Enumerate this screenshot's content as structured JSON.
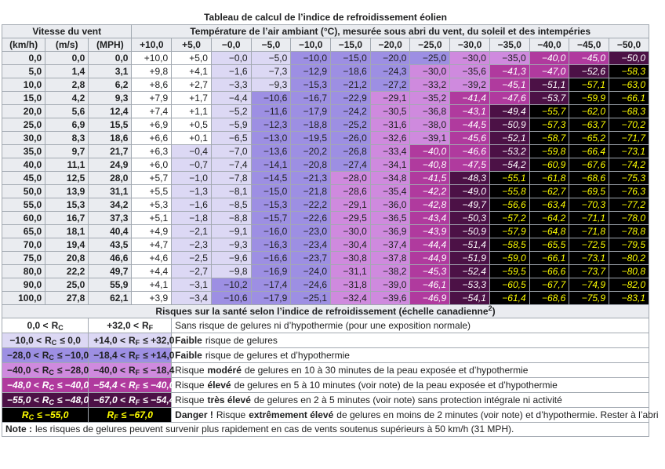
{
  "title": "Tableau de calcul de l’indice de refroidissement éolien",
  "header": {
    "wind": "Vitesse du vent",
    "temperature": "Température de l’air ambiant (°C), mesurée sous abri du vent, du soleil et des intempéries",
    "columns": [
      "(km/h)",
      "(m/s)",
      "(MPH)",
      "+10,0",
      "+5,0",
      "−0,0",
      "−5,0",
      "−10,0",
      "−15,0",
      "−20,0",
      "−25,0",
      "−30,0",
      "−35,0",
      "−40,0",
      "−45,0",
      "−50,0"
    ]
  },
  "rows": [
    [
      "0,0",
      "0,0",
      "0,0",
      "+10,0",
      "+5,0",
      "−0,0",
      "−5,0",
      "−10,0",
      "−15,0",
      "−20,0",
      "−25,0",
      "−30,0",
      "−35,0",
      "−40,0",
      "−45,0",
      "−50,0"
    ],
    [
      "5,0",
      "1,4",
      "3,1",
      "+9,8",
      "+4,1",
      "−1,6",
      "−7,3",
      "−12,9",
      "−18,6",
      "−24,3",
      "−30,0",
      "−35,6",
      "−41,3",
      "−47,0",
      "−52,6",
      "−58,3"
    ],
    [
      "10,0",
      "2,8",
      "6,2",
      "+8,6",
      "+2,7",
      "−3,3",
      "−9,3",
      "−15,3",
      "−21,2",
      "−27,2",
      "−33,2",
      "−39,2",
      "−45,1",
      "−51,1",
      "−57,1",
      "−63,0"
    ],
    [
      "15,0",
      "4,2",
      "9,3",
      "+7,9",
      "+1,7",
      "−4,4",
      "−10,6",
      "−16,7",
      "−22,9",
      "−29,1",
      "−35,2",
      "−41,4",
      "−47,6",
      "−53,7",
      "−59,9",
      "−66,1"
    ],
    [
      "20,0",
      "5,6",
      "12,4",
      "+7,4",
      "+1,1",
      "−5,2",
      "−11,6",
      "−17,9",
      "−24,2",
      "−30,5",
      "−36,8",
      "−43,1",
      "−49,4",
      "−55,7",
      "−62,0",
      "−68,3"
    ],
    [
      "25,0",
      "6,9",
      "15,5",
      "+6,9",
      "+0,5",
      "−5,9",
      "−12,3",
      "−18,8",
      "−25,2",
      "−31,6",
      "−38,0",
      "−44,5",
      "−50,9",
      "−57,3",
      "−63,7",
      "−70,2"
    ],
    [
      "30,0",
      "8,3",
      "18,6",
      "+6,6",
      "+0,1",
      "−6,5",
      "−13,0",
      "−19,5",
      "−26,0",
      "−32,6",
      "−39,1",
      "−45,6",
      "−52,1",
      "−58,7",
      "−65,2",
      "−71,7"
    ],
    [
      "35,0",
      "9,7",
      "21,7",
      "+6,3",
      "−0,4",
      "−7,0",
      "−13,6",
      "−20,2",
      "−26,8",
      "−33,4",
      "−40,0",
      "−46,6",
      "−53,2",
      "−59,8",
      "−66,4",
      "−73,1"
    ],
    [
      "40,0",
      "11,1",
      "24,9",
      "+6,0",
      "−0,7",
      "−7,4",
      "−14,1",
      "−20,8",
      "−27,4",
      "−34,1",
      "−40,8",
      "−47,5",
      "−54,2",
      "−60,9",
      "−67,6",
      "−74,2"
    ],
    [
      "45,0",
      "12,5",
      "28,0",
      "+5,7",
      "−1,0",
      "−7,8",
      "−14,5",
      "−21,3",
      "−28,0",
      "−34,8",
      "−41,5",
      "−48,3",
      "−55,1",
      "−61,8",
      "−68,6",
      "−75,3"
    ],
    [
      "50,0",
      "13,9",
      "31,1",
      "+5,5",
      "−1,3",
      "−8,1",
      "−15,0",
      "−21,8",
      "−28,6",
      "−35,4",
      "−42,2",
      "−49,0",
      "−55,8",
      "−62,7",
      "−69,5",
      "−76,3"
    ],
    [
      "55,0",
      "15,3",
      "34,2",
      "+5,3",
      "−1,6",
      "−8,5",
      "−15,3",
      "−22,2",
      "−29,1",
      "−36,0",
      "−42,8",
      "−49,7",
      "−56,6",
      "−63,4",
      "−70,3",
      "−77,2"
    ],
    [
      "60,0",
      "16,7",
      "37,3",
      "+5,1",
      "−1,8",
      "−8,8",
      "−15,7",
      "−22,6",
      "−29,5",
      "−36,5",
      "−43,4",
      "−50,3",
      "−57,2",
      "−64,2",
      "−71,1",
      "−78,0"
    ],
    [
      "65,0",
      "18,1",
      "40,4",
      "+4,9",
      "−2,1",
      "−9,1",
      "−16,0",
      "−23,0",
      "−30,0",
      "−36,9",
      "−43,9",
      "−50,9",
      "−57,9",
      "−64,8",
      "−71,8",
      "−78,8"
    ],
    [
      "70,0",
      "19,4",
      "43,5",
      "+4,7",
      "−2,3",
      "−9,3",
      "−16,3",
      "−23,4",
      "−30,4",
      "−37,4",
      "−44,4",
      "−51,4",
      "−58,5",
      "−65,5",
      "−72,5",
      "−79,5"
    ],
    [
      "75,0",
      "20,8",
      "46,6",
      "+4,6",
      "−2,5",
      "−9,6",
      "−16,6",
      "−23,7",
      "−30,8",
      "−37,8",
      "−44,9",
      "−51,9",
      "−59,0",
      "−66,1",
      "−73,1",
      "−80,2"
    ],
    [
      "80,0",
      "22,2",
      "49,7",
      "+4,4",
      "−2,7",
      "−9,8",
      "−16,9",
      "−24,0",
      "−31,1",
      "−38,2",
      "−45,3",
      "−52,4",
      "−59,5",
      "−66,6",
      "−73,7",
      "−80,8"
    ],
    [
      "90,0",
      "25,0",
      "55,9",
      "+4,1",
      "−3,1",
      "−10,2",
      "−17,4",
      "−24,6",
      "−31,8",
      "−39,0",
      "−46,1",
      "−53,3",
      "−60,5",
      "−67,7",
      "−74,9",
      "−82,0"
    ],
    [
      "100,0",
      "27,8",
      "62,1",
      "+3,9",
      "−3,4",
      "−10,6",
      "−17,9",
      "−25,1",
      "−32,4",
      "−39,6",
      "−46,9",
      "−54,1",
      "−61,4",
      "−68,6",
      "−75,9",
      "−83,1"
    ]
  ],
  "legend": {
    "heading": {
      "text": "Risques sur la santé selon l’indice de refroidissement (échelle canadienne",
      "sup": "2",
      "end": ")"
    },
    "rows": [
      {
        "rc": {
          "pre": "0,0 <",
          "var": "R",
          "sub": "C"
        },
        "rf": {
          "pre": "+32,0 <",
          "var": "R",
          "sub": "F"
        },
        "description": [
          {
            "text": "Sans risque de gelures ni d’hypothermie (pour une exposition normale)"
          }
        ],
        "color": "#ffffff",
        "text_color": "#202122"
      },
      {
        "rc": {
          "pre": "−10,0 <",
          "var": "R",
          "sub": "C",
          "post": "≤ 0,0"
        },
        "rf": {
          "pre": "+14,0 <",
          "var": "R",
          "sub": "F",
          "post": "≤ +32,0"
        },
        "description": [
          {
            "text": "Faible",
            "bold": true
          },
          {
            "text": "risque de gelures"
          }
        ],
        "color": "#dcd8f4",
        "text_color": "#202122"
      },
      {
        "rc": {
          "pre": "−28,0 <",
          "var": "R",
          "sub": "C",
          "post": "≤ −10,0"
        },
        "rf": {
          "pre": "−18,4 <",
          "var": "R",
          "sub": "F",
          "post": "≤ +14,0"
        },
        "description": [
          {
            "text": "Faible",
            "bold": true
          },
          {
            "text": "risque de gelures et d’hypothermie"
          }
        ],
        "color": "#9d8fe3",
        "text_color": "#202122"
      },
      {
        "rc": {
          "pre": "−40,0 <",
          "var": "R",
          "sub": "C",
          "post": "≤ −28,0"
        },
        "rf": {
          "pre": "−40,0 <",
          "var": "R",
          "sub": "F",
          "post": "≤ −18,4"
        },
        "description": [
          {
            "text": "Risque"
          },
          {
            "text": "modéré",
            "bold": true
          },
          {
            "text": "de gelures en 10 à 30 minutes de la peau exposée et d’hypothermie"
          }
        ],
        "color": "#cf8ade",
        "text_color": "#202122"
      },
      {
        "rc": {
          "pre": "−48,0 <",
          "var": "R",
          "sub": "C",
          "post": "≤ −40,0"
        },
        "rf": {
          "pre": "−54,4 <",
          "var": "R",
          "sub": "F",
          "post": "≤ −40,0"
        },
        "description": [
          {
            "text": "Risque"
          },
          {
            "text": "élevé",
            "bold": true
          },
          {
            "text": "de gelures en 5 à 10 minutes (voir note) de la peau exposée et d’hypothermie"
          }
        ],
        "color": "#b03a9e",
        "text_color": "#ffffff"
      },
      {
        "rc": {
          "pre": "−55,0 <",
          "var": "R",
          "sub": "C",
          "post": "≤ −48,0"
        },
        "rf": {
          "pre": "−67,0 <",
          "var": "R",
          "sub": "F",
          "post": "≤ −54,4"
        },
        "description": [
          {
            "text": "Risque"
          },
          {
            "text": "très élevé",
            "bold": true
          },
          {
            "text": "de gelures en 2 à 5 minutes (voir note) sans protection intégrale ni activité"
          }
        ],
        "color": "#4c1146",
        "text_color": "#ffffff"
      },
      {
        "rc": {
          "var": "R",
          "sub": "C",
          "post": "≤ −55,0"
        },
        "rf": {
          "var": "R",
          "sub": "F",
          "post": "≤ −67,0"
        },
        "description": [
          {
            "text": "Danger !",
            "bold": true
          },
          {
            "text": "Risque"
          },
          {
            "text": "extrêmement élevé",
            "bold": true
          },
          {
            "text": "de gelures en moins de 2 minutes (voir note) et d’hypothermie. Rester à l’abri"
          }
        ],
        "color": "#000000",
        "text_color": "#ffff00"
      }
    ]
  },
  "note": [
    {
      "text": "Note :",
      "bold": true
    },
    {
      "text": "les risques de gelures peuvent survenir plus rapidement en cas de vents soutenus supérieurs à 50 km/h (31 MPH)."
    }
  ]
}
